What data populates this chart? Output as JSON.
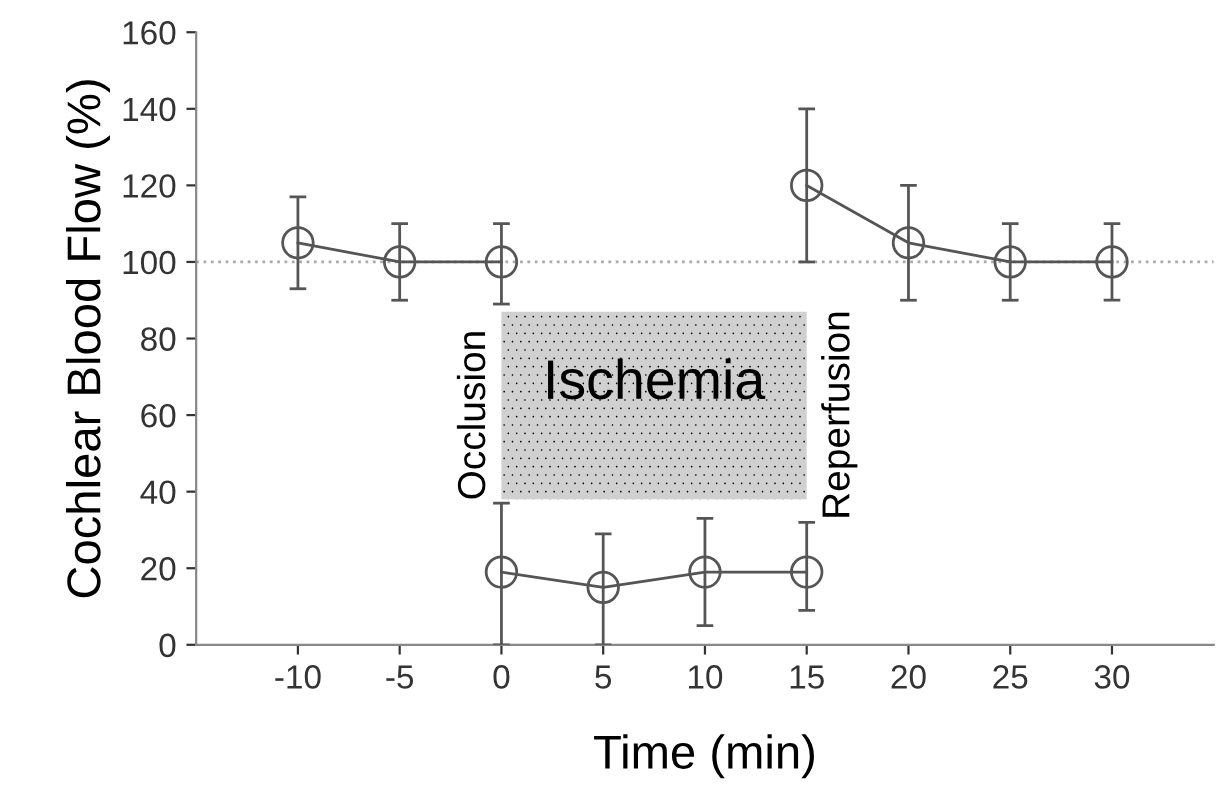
{
  "chart_data": {
    "type": "line",
    "xlabel": "Time (min)",
    "ylabel": "Cochlear Blood Flow (%)",
    "xlim": [
      -15,
      35
    ],
    "xticks": [
      -10,
      -5,
      0,
      5,
      10,
      15,
      20,
      25,
      30
    ],
    "ylim": [
      0,
      160
    ],
    "yticks": [
      0,
      20,
      40,
      60,
      80,
      100,
      120,
      140,
      160
    ],
    "series": [
      {
        "color": "#555555",
        "x": [
          -10,
          -5,
          0
        ],
        "values": [
          105,
          100,
          100
        ],
        "errors": [
          [
            93,
            117
          ],
          [
            90,
            110
          ],
          [
            89,
            110
          ]
        ]
      },
      {
        "color": "#555555",
        "x": [
          0,
          5,
          10,
          15
        ],
        "values": [
          19,
          15,
          19,
          19
        ],
        "errors": [
          [
            0,
            37
          ],
          [
            0,
            29
          ],
          [
            5,
            33
          ],
          [
            9,
            32
          ]
        ]
      },
      {
        "color": "#555555",
        "x": [
          15,
          20,
          25,
          30
        ],
        "values": [
          120,
          105,
          100,
          100
        ],
        "errors": [
          [
            100,
            140
          ],
          [
            90,
            120
          ],
          [
            90,
            110
          ],
          [
            90,
            110
          ]
        ]
      }
    ],
    "marker": "circle",
    "line_style": "solid",
    "grid": false,
    "legend": false,
    "ref_lines": [
      {
        "axis": "y",
        "value": 100,
        "color": "#aaaaaa",
        "line_style": "dotted"
      }
    ],
    "bands": [
      {
        "axis": "x",
        "from": 0,
        "to": 15,
        "label": "Ischemia",
        "color": "#d0d0d0"
      }
    ],
    "annotations": [
      {
        "text": "Occlusion",
        "x": 0,
        "y": 60
      },
      {
        "text": "Reperfusion",
        "x": 15,
        "y": 60
      }
    ]
  }
}
